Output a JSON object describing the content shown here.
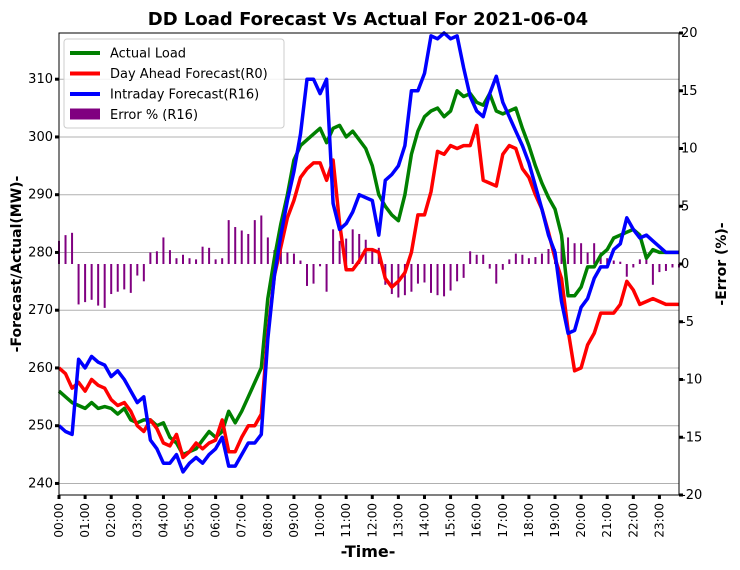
{
  "chart_data": {
    "type": "line",
    "title": "DD Load Forecast Vs Actual For 2021-06-04",
    "xlabel": "-Time-",
    "ylabel": "-Forecast/Actual(MW)-",
    "y2label": "-Error (%)-",
    "ylim": [
      238,
      318
    ],
    "y2lim": [
      -20,
      20
    ],
    "yticks": [
      240,
      250,
      260,
      270,
      280,
      290,
      300,
      310
    ],
    "y2ticks": [
      -20,
      -15,
      -10,
      -5,
      0,
      5,
      10,
      15,
      20
    ],
    "xticks": [
      "00:00",
      "01:00",
      "02:00",
      "03:00",
      "04:00",
      "05:00",
      "06:00",
      "07:00",
      "08:00",
      "09:00",
      "10:00",
      "11:00",
      "12:00",
      "13:00",
      "14:00",
      "15:00",
      "16:00",
      "17:00",
      "18:00",
      "19:00",
      "20:00",
      "21:00",
      "22:00",
      "23:00"
    ],
    "grid": "horizontal",
    "legend_position": "top-left",
    "x_interval": "15 min (96 points, 00:00 to 23:45)",
    "series": [
      {
        "name": "Actual Load",
        "color": "#008000",
        "axis": "left",
        "kind": "line",
        "values": [
          256,
          255,
          254,
          253.5,
          253,
          254,
          253,
          253.3,
          253,
          252,
          253,
          251,
          250.5,
          251,
          251,
          250,
          250.5,
          248,
          247,
          245,
          245.5,
          246,
          247.5,
          249,
          248,
          249,
          252.5,
          250.5,
          252.5,
          255,
          257.5,
          260,
          272,
          279,
          285,
          290,
          296,
          298.5,
          299.5,
          300.5,
          301.5,
          299,
          301.5,
          302,
          300,
          301,
          299.5,
          298,
          295,
          290,
          288,
          286.5,
          285.5,
          290,
          297,
          301,
          303.5,
          304.5,
          305,
          303.5,
          304.5,
          308,
          307,
          307.5,
          306,
          305.5,
          307.5,
          304.5,
          304,
          304.5,
          305,
          301.5,
          298.5,
          295,
          292,
          289.5,
          287.5,
          283,
          272.5,
          272.5,
          274,
          277.5,
          277.5,
          279.5,
          280.5,
          282.5,
          283,
          283.5,
          284,
          283,
          279,
          280.5,
          280,
          280,
          280,
          280
        ]
      },
      {
        "name": "Day Ahead Forecast(R0)",
        "color": "#ff0000",
        "axis": "left",
        "kind": "line",
        "values": [
          260,
          259,
          256.5,
          257.5,
          256,
          258,
          257,
          256.5,
          254.5,
          253.5,
          254,
          252.5,
          250,
          249,
          251,
          249.5,
          247,
          246.5,
          248.5,
          244.5,
          245.5,
          247,
          246,
          247,
          247.5,
          251,
          245.5,
          245.5,
          248,
          250,
          250,
          252,
          266,
          276,
          281,
          286,
          289,
          293,
          294.5,
          295.5,
          295.5,
          292.5,
          296,
          285,
          277,
          277,
          278.5,
          280.5,
          280.5,
          280,
          275.5,
          274,
          275,
          276.5,
          280,
          286.5,
          286.5,
          290.5,
          297.5,
          297,
          298.5,
          298,
          298.5,
          298.5,
          302,
          292.5,
          292,
          291.5,
          297,
          298.5,
          298,
          294.5,
          293,
          290,
          287.5,
          283.5,
          279,
          275.5,
          266.5,
          259.5,
          260,
          264,
          266,
          269.5,
          269.5,
          269.5,
          271,
          275,
          273.5,
          271,
          271.5,
          272,
          271.5,
          271,
          271,
          271
        ]
      },
      {
        "name": "Intraday Forecast(R16)",
        "color": "#0000ff",
        "axis": "left",
        "kind": "line",
        "values": [
          250,
          249,
          248.5,
          261.5,
          260,
          262,
          261,
          260.5,
          258.5,
          259.5,
          258,
          256,
          254,
          255,
          247.5,
          246,
          243.5,
          243.5,
          245,
          242,
          243.5,
          244.5,
          243.5,
          245,
          246,
          248,
          243,
          243,
          245,
          247,
          247,
          248.5,
          265,
          276,
          283,
          289,
          294,
          300.5,
          310,
          310,
          307.5,
          310,
          288.5,
          284,
          285,
          287,
          290,
          289.5,
          289,
          283,
          292.5,
          293.5,
          295,
          298.5,
          308,
          308,
          311,
          317.5,
          317,
          318,
          317,
          317.5,
          312,
          307,
          304.5,
          303.5,
          307.5,
          310.5,
          306,
          303.5,
          301,
          298.5,
          295.5,
          291.5,
          287.5,
          283,
          280,
          271.5,
          266,
          266.5,
          270.5,
          272,
          275.5,
          277.5,
          277.5,
          280.5,
          281.5,
          286,
          284,
          282.5,
          283,
          282,
          281,
          280,
          280,
          280
        ]
      },
      {
        "name": "Error % (R16)",
        "color": "#800080",
        "axis": "right",
        "kind": "bar",
        "values": [
          2,
          2.5,
          2.7,
          -3.5,
          -3.3,
          -3.1,
          -3.6,
          -3.8,
          -2.6,
          -2.4,
          -2.2,
          -2.5,
          -1,
          -1.5,
          1,
          1.1,
          2.3,
          1.2,
          0.5,
          0.8,
          0.5,
          0.4,
          1.5,
          1.4,
          0.4,
          0.5,
          3.8,
          3.2,
          2.9,
          2.6,
          3.8,
          4.2,
          2.3,
          1.2,
          1.5,
          1,
          0.9,
          0.3,
          -1.9,
          -1.7,
          -0.2,
          -2.4,
          3,
          2,
          2.2,
          3,
          2.6,
          2.1,
          1.3,
          1.4,
          -1.8,
          -2.6,
          -2.9,
          -2.7,
          -2.4,
          -1.7,
          -1.6,
          -2.5,
          -2.7,
          -2.8,
          -2.3,
          -1.5,
          -1.2,
          1.1,
          0.8,
          0.8,
          -0.4,
          -1.7,
          -0.5,
          0.4,
          0.9,
          0.8,
          0.5,
          0.6,
          0.9,
          1.3,
          1.3,
          2.2,
          2.3,
          1.8,
          1.8,
          1,
          1.8,
          1,
          0.5,
          0.3,
          0.2,
          -1.1,
          -0.3,
          0.4,
          0.7,
          -1.8,
          -0.7,
          -0.6,
          -0.3,
          -0.3
        ]
      }
    ]
  }
}
